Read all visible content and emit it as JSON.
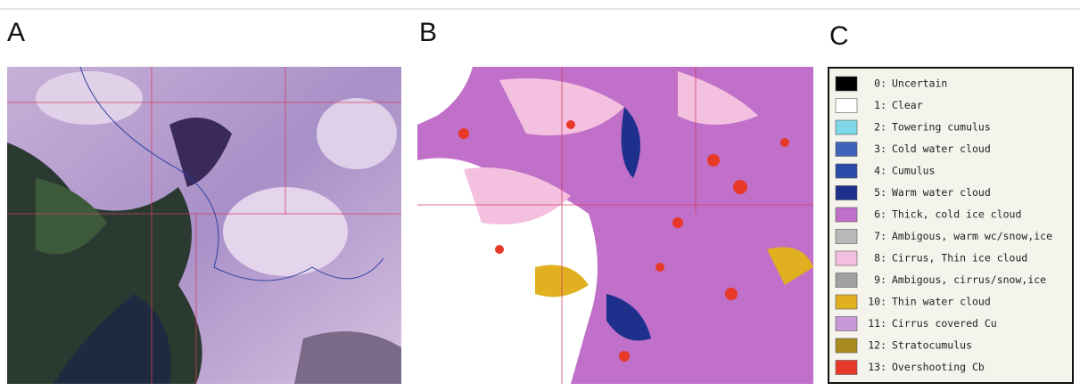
{
  "panels": [
    {
      "label": "A"
    },
    {
      "label": "B"
    },
    {
      "label": "C"
    }
  ],
  "legend": {
    "entries": [
      {
        "code": "0:",
        "label": "Uncertain",
        "color": "#000000"
      },
      {
        "code": "1:",
        "label": "Clear",
        "color": "#ffffff"
      },
      {
        "code": "2:",
        "label": "Towering cumulus",
        "color": "#7fd8e8"
      },
      {
        "code": "3:",
        "label": "Cold water cloud",
        "color": "#3f63b8"
      },
      {
        "code": "4:",
        "label": "Cumulus",
        "color": "#2a4ca8"
      },
      {
        "code": "5:",
        "label": "Warm water cloud",
        "color": "#1e2f8c"
      },
      {
        "code": "6:",
        "label": "Thick, cold ice cloud",
        "color": "#c070c8"
      },
      {
        "code": "7:",
        "label": "Ambigous, warm wc/snow,ice",
        "color": "#b8b8b8"
      },
      {
        "code": "8:",
        "label": "Cirrus, Thin ice cloud",
        "color": "#f4c0e0"
      },
      {
        "code": "9:",
        "label": "Ambigous, cirrus/snow,ice",
        "color": "#a0a0a0"
      },
      {
        "code": "10:",
        "label": "Thin water cloud",
        "color": "#e0b020"
      },
      {
        "code": "11:",
        "label": "Cirrus covered Cu",
        "color": "#c898d8"
      },
      {
        "code": "12:",
        "label": "Stratocumulus",
        "color": "#a88a20"
      },
      {
        "code": "13:",
        "label": "Overshooting Cb",
        "color": "#e83828"
      }
    ]
  }
}
